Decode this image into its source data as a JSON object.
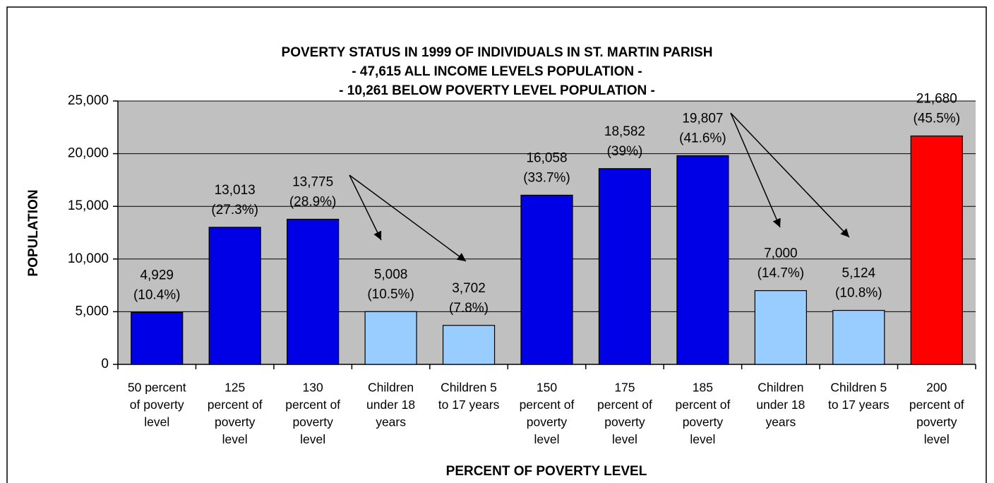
{
  "chart_data": {
    "type": "bar",
    "title": "POVERTY STATUS IN 1999 OF INDIVIDUALS IN ST. MARTIN PARISH",
    "subtitle": [
      "- 47,615 ALL INCOME LEVELS POPULATION -",
      "- 10,261 BELOW POVERTY LEVEL POPULATION -"
    ],
    "x_label": "PERCENT OF POVERTY LEVEL",
    "y_label": "POPULATION",
    "categories": [
      [
        "50 percent",
        "of poverty",
        "level"
      ],
      [
        "125",
        "percent of",
        "poverty",
        "level"
      ],
      [
        "130",
        "percent of",
        "poverty",
        "level"
      ],
      [
        "Children",
        "under 18",
        "years"
      ],
      [
        "Children 5",
        "to 17 years"
      ],
      [
        "150",
        "percent of",
        "poverty",
        "level"
      ],
      [
        "175",
        "percent of",
        "poverty",
        "level"
      ],
      [
        "185",
        "percent of",
        "poverty",
        "level"
      ],
      [
        "Children",
        "under 18",
        "years"
      ],
      [
        "Children 5",
        "to 17 years"
      ],
      [
        "200",
        "percent of",
        "poverty",
        "level"
      ]
    ],
    "values": [
      4929,
      13013,
      13775,
      5008,
      3702,
      16058,
      18582,
      19807,
      7000,
      5124,
      21680
    ],
    "value_labels": [
      "4,929",
      "13,013",
      "13,775",
      "5,008",
      "3,702",
      "16,058",
      "18,582",
      "19,807",
      "7,000",
      "5,124",
      "21,680"
    ],
    "share_labels": [
      "(10.4%)",
      "(27.3%)",
      "(28.9%)",
      "(10.5%)",
      "(7.8%)",
      "(33.7%)",
      "(39%)",
      "(41.6%)",
      "(14.7%)",
      "(10.8%)",
      "(45.5%)"
    ],
    "colors": [
      "#0000e6",
      "#0000e6",
      "#0000e6",
      "#99ccff",
      "#99ccff",
      "#0000e6",
      "#0000e6",
      "#0000e6",
      "#99ccff",
      "#99ccff",
      "#ff0000"
    ],
    "ylim": [
      0,
      25000
    ],
    "yticks": [
      0,
      {
        "value": 5000,
        "label": "5,000"
      },
      {
        "value": 10000,
        "label": "10,000"
      },
      {
        "value": 15000,
        "label": "15,000"
      },
      {
        "value": 20000,
        "label": "20,000"
      },
      {
        "value": 25000,
        "label": "25,000"
      }
    ],
    "grid": true,
    "plot_background": "#c0c0c0"
  }
}
